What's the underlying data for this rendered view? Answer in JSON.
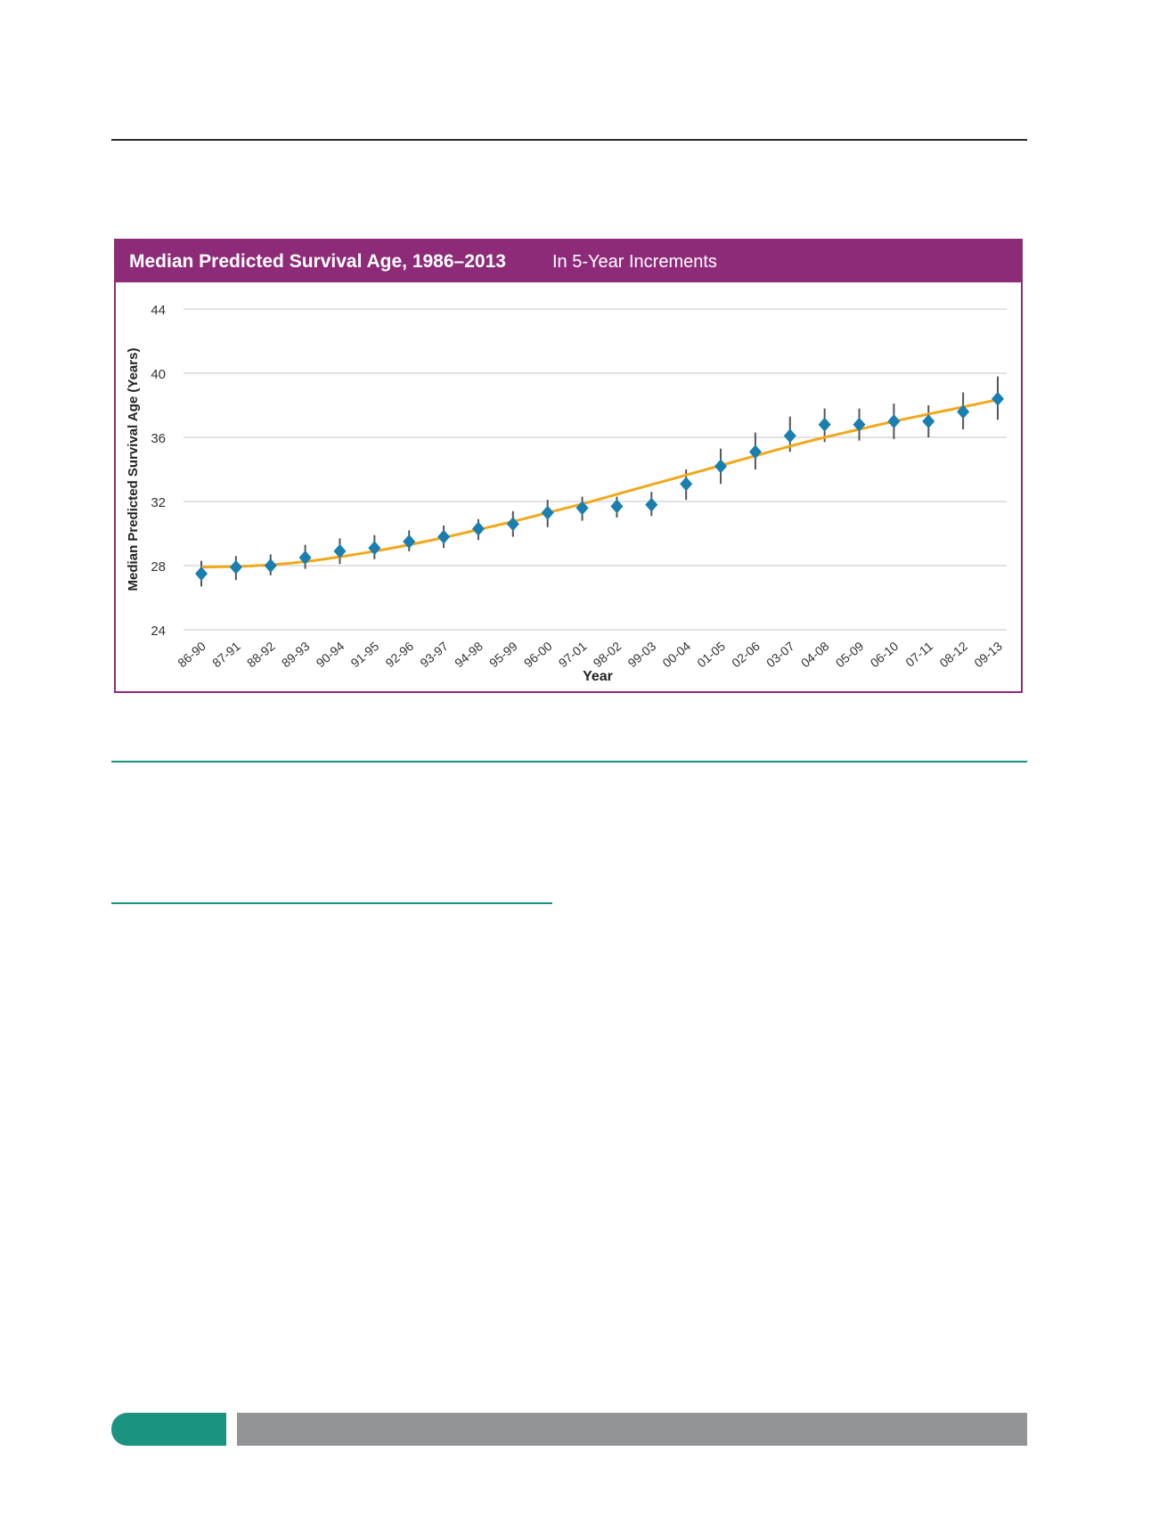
{
  "chart": {
    "title": "Median Predicted Survival Age, 1986–2013",
    "subtitle": "In 5-Year Increments"
  },
  "chart_data": {
    "type": "scatter",
    "title": "Median Predicted Survival Age, 1986–2013",
    "subtitle": "In 5-Year Increments",
    "xlabel": "Year",
    "ylabel": "Median Predicted Survival Age (Years)",
    "ylim": [
      24,
      44
    ],
    "yticks": [
      24,
      28,
      32,
      36,
      40,
      44
    ],
    "grid": true,
    "categories": [
      "86-90",
      "87-91",
      "88-92",
      "89-93",
      "90-94",
      "91-95",
      "92-96",
      "93-97",
      "94-98",
      "95-99",
      "96-00",
      "97-01",
      "98-02",
      "99-03",
      "00-04",
      "01-05",
      "02-06",
      "03-07",
      "04-08",
      "05-09",
      "06-10",
      "07-11",
      "08-12",
      "09-13"
    ],
    "series": [
      {
        "values": [
          27.5,
          27.9,
          28.0,
          28.5,
          28.9,
          29.1,
          29.5,
          29.8,
          30.3,
          30.6,
          31.3,
          31.6,
          31.7,
          31.8,
          33.1,
          34.2,
          35.1,
          36.1,
          36.8,
          36.8,
          37.0,
          37.0,
          37.6,
          38.4
        ],
        "lower": [
          26.7,
          27.1,
          27.4,
          27.8,
          28.1,
          28.4,
          28.9,
          29.1,
          29.6,
          29.8,
          30.4,
          30.8,
          31.0,
          31.1,
          32.1,
          33.1,
          34.0,
          35.1,
          35.7,
          35.8,
          35.9,
          36.0,
          36.5,
          37.1
        ],
        "upper": [
          28.3,
          28.6,
          28.7,
          29.3,
          29.7,
          29.9,
          30.2,
          30.5,
          30.9,
          31.4,
          32.1,
          32.3,
          32.3,
          32.6,
          34.0,
          35.3,
          36.3,
          37.3,
          37.8,
          37.8,
          38.1,
          38.0,
          38.8,
          39.8
        ],
        "color": "#1a7fb0",
        "error_color": "#555555"
      },
      {
        "type": "trend",
        "values": [
          27.9,
          27.95,
          28.05,
          28.25,
          28.55,
          28.9,
          29.3,
          29.75,
          30.25,
          30.75,
          31.3,
          31.85,
          32.45,
          33.05,
          33.65,
          34.25,
          34.85,
          35.45,
          36.0,
          36.5,
          37.0,
          37.45,
          37.9,
          38.35
        ],
        "color": "#f2a81d"
      }
    ]
  },
  "colors": {
    "header": "#8e2b79",
    "teal": "#17917f",
    "grid": "#d9d9d9"
  }
}
